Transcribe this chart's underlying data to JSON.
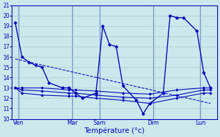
{
  "xlabel": "Température (°c)",
  "bg_color": "#cce8ec",
  "grid_color": "#aacccc",
  "line_color": "#0000bb",
  "ylim": [
    10,
    21
  ],
  "xlim": [
    -0.5,
    30
  ],
  "yticks": [
    10,
    11,
    12,
    13,
    14,
    15,
    16,
    17,
    18,
    19,
    20,
    21
  ],
  "day_labels": [
    "Ven",
    "Mar",
    "Sam",
    "Dim",
    "Lun"
  ],
  "day_positions": [
    0.5,
    8.5,
    12.5,
    20.5,
    27.5
  ],
  "lines": [
    {
      "x": [
        0,
        1,
        2,
        3,
        4,
        5,
        7,
        8,
        9,
        10,
        12,
        13,
        14,
        15,
        16,
        18,
        19,
        20,
        22,
        23,
        24,
        25,
        27,
        28,
        29
      ],
      "y": [
        19.3,
        16.0,
        15.5,
        15.2,
        15.0,
        13.5,
        13.0,
        13.0,
        12.5,
        12.0,
        12.5,
        19.0,
        17.2,
        17.0,
        13.2,
        11.8,
        10.5,
        11.5,
        12.5,
        20.0,
        19.8,
        19.8,
        18.5,
        14.5,
        13.0
      ],
      "lw": 1.0,
      "ms": 2.5
    },
    {
      "x": [
        0,
        1,
        4,
        8,
        9,
        12,
        16,
        20,
        24,
        28,
        29
      ],
      "y": [
        13.0,
        13.0,
        13.0,
        12.8,
        12.8,
        12.7,
        12.5,
        12.4,
        12.8,
        13.0,
        13.0
      ],
      "lw": 0.8,
      "ms": 2.0
    },
    {
      "x": [
        0,
        1,
        4,
        8,
        9,
        12,
        16,
        20,
        24,
        28,
        29
      ],
      "y": [
        13.0,
        12.8,
        12.7,
        12.5,
        12.5,
        12.3,
        12.1,
        12.0,
        12.3,
        12.8,
        12.8
      ],
      "lw": 0.8,
      "ms": 2.0
    },
    {
      "x": [
        0,
        1,
        4,
        8,
        9,
        12,
        16,
        20,
        24,
        28,
        29
      ],
      "y": [
        13.0,
        12.5,
        12.3,
        12.2,
        12.2,
        12.0,
        11.8,
        11.5,
        12.0,
        12.5,
        12.5
      ],
      "lw": 0.8,
      "ms": 2.0
    },
    {
      "x": [
        0,
        29
      ],
      "y": [
        15.8,
        11.5
      ],
      "lw": 0.8,
      "ms": 0,
      "dashed": true
    }
  ]
}
